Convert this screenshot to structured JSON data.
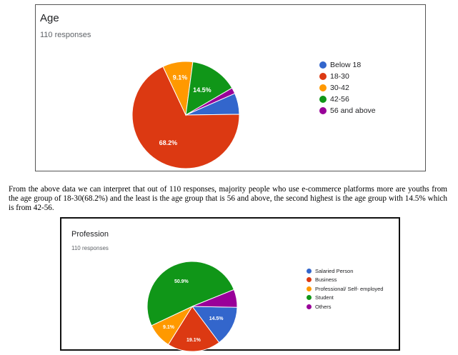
{
  "age_chart": {
    "title": "Age",
    "subtitle": "110 responses",
    "chart_data": {
      "type": "pie",
      "categories": [
        "Below 18",
        "18-30",
        "30-42",
        "42-56",
        "56 and above"
      ],
      "values": [
        6.4,
        68.2,
        9.1,
        14.5,
        1.8
      ],
      "labels": [
        "",
        "68.2%",
        "9.1%",
        "14.5%",
        ""
      ],
      "colors": [
        "#3366cc",
        "#dc3912",
        "#ff9900",
        "#109618",
        "#990099"
      ],
      "legend_position": "right"
    }
  },
  "paragraph": "From the above data we can interpret that out of 110 responses, majority people who use e-commerce platforms more are youths from the age group of 18-30(68.2%) and the least is the age group that is 56 and above, the second highest is the age group with 14.5% which is from 42-56.",
  "profession_chart": {
    "title": "Profession",
    "subtitle": "110 responses",
    "chart_data": {
      "type": "pie",
      "categories": [
        "Salaried Person",
        "Business",
        "Professional/ Self- employed",
        "Student",
        "Others"
      ],
      "values": [
        14.5,
        19.1,
        9.1,
        50.9,
        6.4
      ],
      "labels": [
        "14.5%",
        "19.1%",
        "9.1%",
        "50.9%",
        ""
      ],
      "colors": [
        "#3366cc",
        "#dc3912",
        "#ff9900",
        "#109618",
        "#990099"
      ],
      "legend_position": "right"
    }
  }
}
